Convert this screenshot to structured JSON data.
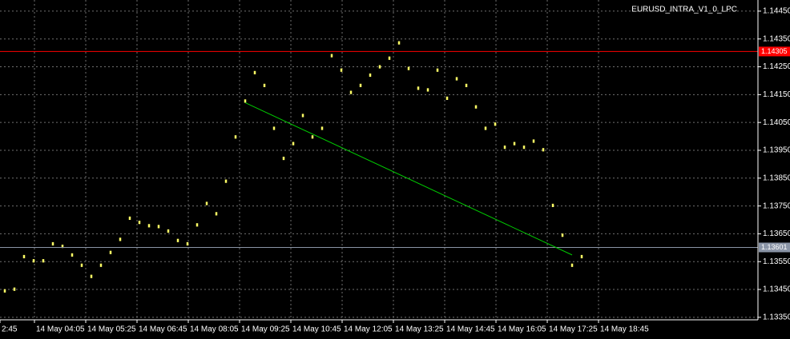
{
  "chart_data": {
    "type": "ohlc",
    "title": "EURUSD_INTRA_V1_0_LPC",
    "color": "#ffff66",
    "grid": true,
    "xlim": [
      -0.5,
      78.33
    ],
    "xticks": [
      {
        "value": -0.5,
        "label": "2:45"
      },
      {
        "value": 3.083,
        "label": "14 May 04:05"
      },
      {
        "value": 8.417,
        "label": "14 May 05:25"
      },
      {
        "value": 13.75,
        "label": "14 May 06:45"
      },
      {
        "value": 19.083,
        "label": "14 May 08:05"
      },
      {
        "value": 24.417,
        "label": "14 May 09:25"
      },
      {
        "value": 29.75,
        "label": "14 May 10:45"
      },
      {
        "value": 35.083,
        "label": "14 May 12:05"
      },
      {
        "value": 40.417,
        "label": "14 May 13:25"
      },
      {
        "value": 45.75,
        "label": "14 May 14:45"
      },
      {
        "value": 51.083,
        "label": "14 May 16:05"
      },
      {
        "value": 56.417,
        "label": "14 May 17:25"
      },
      {
        "value": 61.75,
        "label": "14 May 18:45"
      }
    ],
    "ylim": [
      1.13341,
      1.1449
    ],
    "yticks": [
      {
        "value": 1.1445,
        "label": "1.14450"
      },
      {
        "value": 1.1435,
        "label": "1.14350"
      },
      {
        "value": 1.1425,
        "label": "1.14250"
      },
      {
        "value": 1.1415,
        "label": "1.14150"
      },
      {
        "value": 1.1405,
        "label": "1.14050"
      },
      {
        "value": 1.1395,
        "label": "1.13950"
      },
      {
        "value": 1.1385,
        "label": "1.13850"
      },
      {
        "value": 1.1375,
        "label": "1.13750"
      },
      {
        "value": 1.1365,
        "label": "1.13650"
      },
      {
        "value": 1.1355,
        "label": "1.13550"
      },
      {
        "value": 1.1345,
        "label": "1.13450"
      },
      {
        "value": 1.1335,
        "label": "1.13350"
      }
    ],
    "high": [
      1.13451,
      1.13457,
      1.13574,
      1.13559,
      1.13559,
      1.1362,
      1.13611,
      1.1358,
      1.13543,
      1.13503,
      1.13543,
      1.13589,
      1.13636,
      1.13712,
      1.13697,
      1.13685,
      1.13682,
      1.13666,
      1.13632,
      1.1362,
      1.13688,
      1.13765,
      1.13728,
      1.13845,
      1.14004,
      1.14133,
      1.14235,
      1.14189,
      1.14035,
      1.13927,
      1.1398,
      1.14081,
      1.14004,
      1.14035,
      1.14296,
      1.14244,
      1.14164,
      1.14189,
      1.14226,
      1.14256,
      1.14287,
      1.14342,
      1.1425,
      1.14179,
      1.14173,
      1.14244,
      1.14143,
      1.14213,
      1.14189,
      1.14112,
      1.14035,
      1.1405,
      1.13967,
      1.1398,
      1.13967,
      1.13989,
      1.13958,
      1.13758,
      1.13651,
      1.13543,
      1.13574
    ],
    "low": [
      1.13439,
      1.13445,
      1.13562,
      1.13547,
      1.13547,
      1.13608,
      1.13599,
      1.13568,
      1.13531,
      1.13491,
      1.13531,
      1.13577,
      1.13624,
      1.137,
      1.13685,
      1.13673,
      1.1367,
      1.13654,
      1.1362,
      1.13608,
      1.13676,
      1.13753,
      1.13716,
      1.13833,
      1.13992,
      1.14121,
      1.14223,
      1.14177,
      1.14023,
      1.13915,
      1.13968,
      1.14069,
      1.13992,
      1.14023,
      1.14284,
      1.14232,
      1.14152,
      1.14177,
      1.14214,
      1.14244,
      1.14275,
      1.1433,
      1.14238,
      1.14167,
      1.14161,
      1.14232,
      1.14131,
      1.14201,
      1.14177,
      1.141,
      1.14023,
      1.14038,
      1.13955,
      1.13968,
      1.13955,
      1.13977,
      1.13946,
      1.13746,
      1.13639,
      1.13531,
      1.13562
    ],
    "hlines": [
      {
        "price": 1.14305,
        "color": "#ff0000"
      },
      {
        "price": 1.13601,
        "color": "#8a94a6"
      }
    ],
    "trendline": {
      "x": [
        25,
        59
      ],
      "y": [
        1.14121,
        1.13574
      ],
      "color": "#00cc00"
    }
  }
}
